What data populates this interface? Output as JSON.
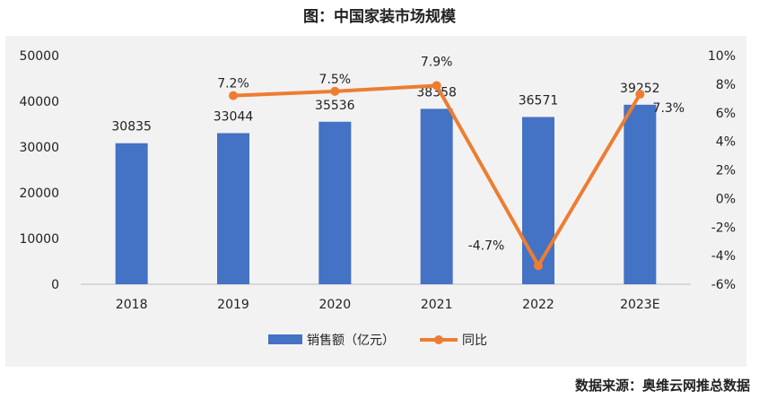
{
  "title": "图：中国家装市场规模",
  "source": "数据来源：奥维云网推总数据",
  "chart_data": {
    "type": "bar",
    "categories": [
      "2018",
      "2019",
      "2020",
      "2021",
      "2022",
      "2023E"
    ],
    "series": [
      {
        "name": "销售额（亿元）",
        "type": "bar",
        "axis": "left",
        "values": [
          30835,
          33044,
          35536,
          38358,
          36571,
          39252
        ],
        "labels": [
          "30835",
          "33044",
          "35536",
          "38358",
          "36571",
          "39252"
        ],
        "color": "#4472c4"
      },
      {
        "name": "同比",
        "type": "line",
        "axis": "right",
        "values": [
          null,
          7.2,
          7.5,
          7.9,
          -4.7,
          7.3
        ],
        "labels": [
          "",
          "7.2%",
          "7.5%",
          "7.9%",
          "-4.7%",
          "7.3%"
        ],
        "color": "#ed7d31"
      }
    ],
    "left_axis": {
      "min": 0,
      "max": 50000,
      "ticks": [
        "0",
        "10000",
        "20000",
        "30000",
        "40000",
        "50000"
      ]
    },
    "right_axis": {
      "min": -6,
      "max": 10,
      "ticks": [
        "-6%",
        "-4%",
        "-2%",
        "0%",
        "2%",
        "4%",
        "6%",
        "8%",
        "10%"
      ]
    },
    "legend": [
      "销售额（亿元）",
      "同比"
    ],
    "legend_position": "bottom"
  }
}
